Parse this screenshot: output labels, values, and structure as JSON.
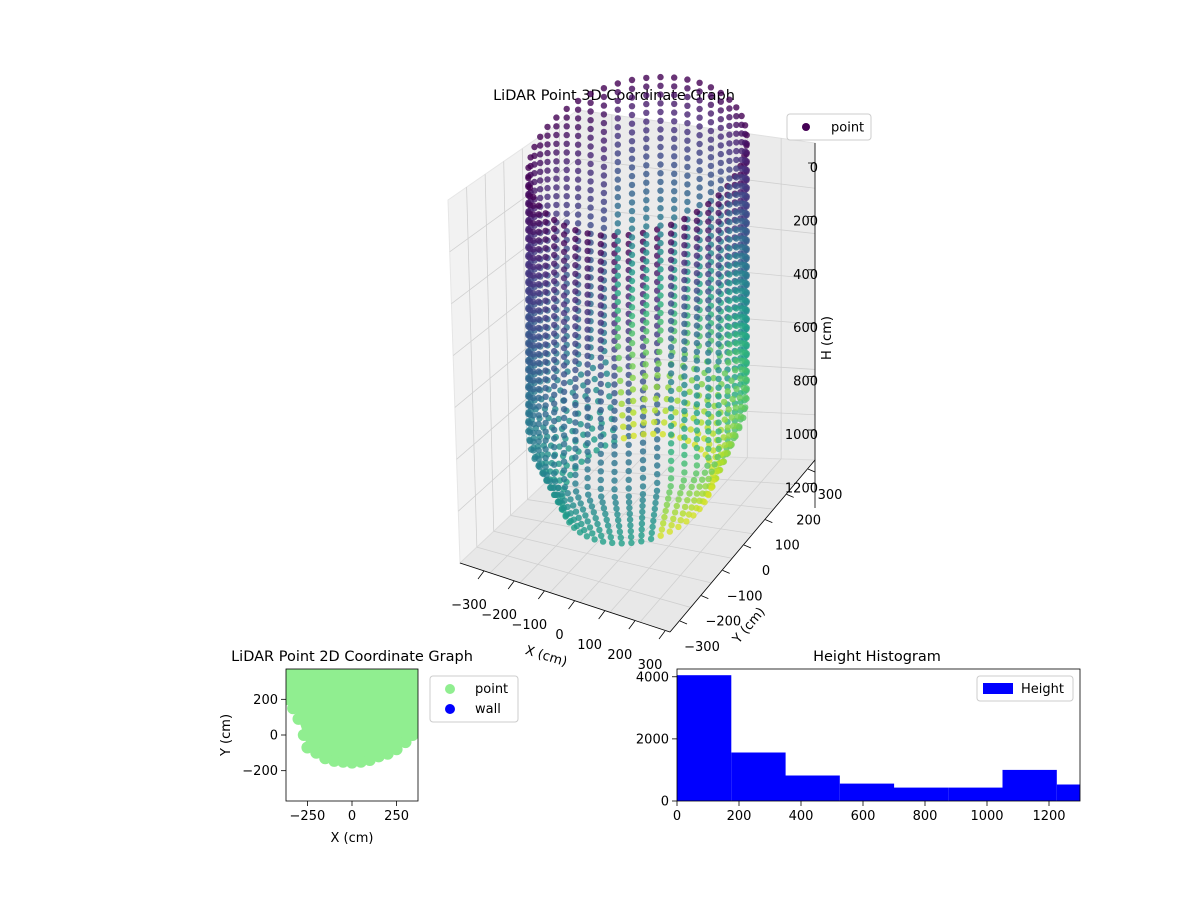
{
  "chart_data": [
    {
      "type": "scatter",
      "projection": "3d",
      "title": "LiDAR Point 3D Coordinate Graph",
      "xlabel": "X (cm)",
      "ylabel": "Y (cm)",
      "zlabel": "H (cm)",
      "x_ticks": [
        "−300",
        "−200",
        "−100",
        "0",
        "100",
        "200",
        "300"
      ],
      "y_ticks": [
        "−300",
        "−200",
        "−100",
        "0",
        "100",
        "200",
        "300"
      ],
      "z_ticks": [
        "0",
        "200",
        "400",
        "600",
        "800",
        "1000",
        "1200"
      ],
      "z_inverted": true,
      "xlim": [
        -350,
        350
      ],
      "ylim": [
        -350,
        350
      ],
      "zlim": [
        0,
        1300
      ],
      "legend": [
        {
          "label": "point",
          "color": "#440154"
        }
      ],
      "legend_position": "top-right",
      "colormap": "viridis",
      "grid": true,
      "description_of_shape": "points form a vertical open cylinder of radius ~300 cm, H from 0 to ~1250 cm"
    },
    {
      "type": "scatter",
      "title": "LiDAR Point 2D Coordinate Graph",
      "xlabel": "X (cm)",
      "ylabel": "Y (cm)",
      "x_ticks": [
        "−250",
        "0",
        "250"
      ],
      "y_ticks": [
        "200",
        "0",
        "−200"
      ],
      "xlim": [
        -370,
        370
      ],
      "ylim": [
        -370,
        370
      ],
      "legend": [
        {
          "label": "point",
          "color": "#90ee90"
        },
        {
          "label": "wall",
          "color": "#0000ff"
        }
      ],
      "legend_position": "outside-right",
      "footprint_boundary": [
        [
          -370,
          200
        ],
        [
          -330,
          150
        ],
        [
          -300,
          90
        ],
        [
          -270,
          0
        ],
        [
          -250,
          -70
        ],
        [
          -200,
          -100
        ],
        [
          -150,
          -130
        ],
        [
          -100,
          -145
        ],
        [
          -50,
          -150
        ],
        [
          0,
          -155
        ],
        [
          50,
          -150
        ],
        [
          100,
          -140
        ],
        [
          150,
          -120
        ],
        [
          200,
          -105
        ],
        [
          250,
          -80
        ],
        [
          300,
          -40
        ],
        [
          340,
          0
        ],
        [
          370,
          20
        ],
        [
          370,
          370
        ],
        [
          -370,
          370
        ]
      ]
    },
    {
      "type": "bar",
      "subtype": "histogram",
      "title": "Height Histogram",
      "x_ticks": [
        "0",
        "200",
        "400",
        "600",
        "800",
        "1000",
        "1200"
      ],
      "y_ticks": [
        "0",
        "2000",
        "4000"
      ],
      "xlim": [
        0,
        1300
      ],
      "ylim": [
        0,
        4250
      ],
      "bin_edges": [
        0,
        175,
        350,
        525,
        700,
        875,
        1050,
        1225,
        1300
      ],
      "values": [
        4050,
        1560,
        820,
        560,
        430,
        430,
        1000,
        530
      ],
      "legend": [
        {
          "label": "Height",
          "color": "#0000ff"
        }
      ],
      "legend_position": "top-right",
      "bar_color": "#0000ff"
    }
  ]
}
